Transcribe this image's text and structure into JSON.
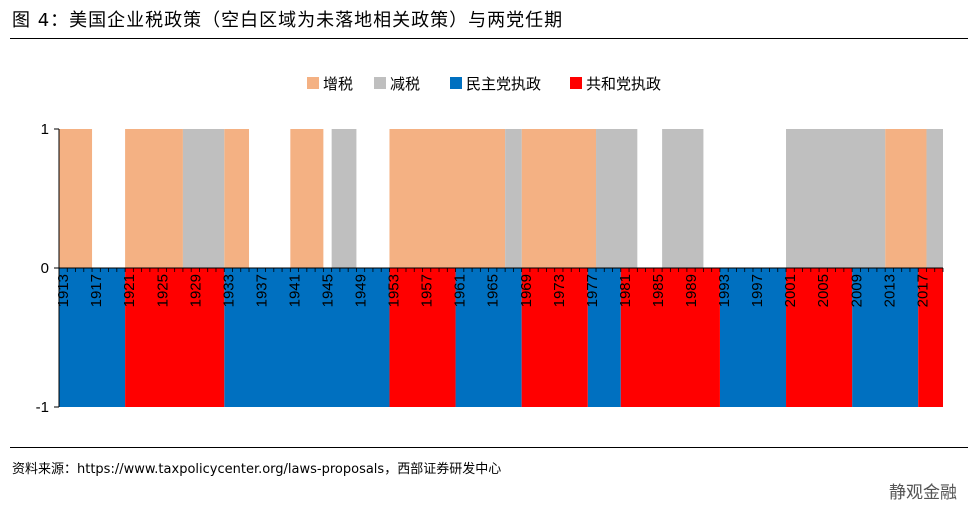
{
  "title": "图 4：美国企业税政策（空白区域为未落地相关政策）与两党任期",
  "source": "资料来源：https://www.taxpolicycenter.org/laws-proposals，西部证券研发中心",
  "watermark": "静观金融",
  "colors": {
    "increase": "#F4B183",
    "cut": "#BFBFBF",
    "democrat": "#0070C0",
    "republican": "#FF0000",
    "axis": "#000000"
  },
  "chart_data": {
    "type": "bar",
    "x_start_year": 1913,
    "x_end_year": 2020,
    "x_tick_labels": [
      "1913",
      "1917",
      "1921",
      "1925",
      "1929",
      "1933",
      "1937",
      "1941",
      "1945",
      "1949",
      "1953",
      "1957",
      "1961",
      "1965",
      "1969",
      "1973",
      "1977",
      "1981",
      "1985",
      "1989",
      "1993",
      "1997",
      "2001",
      "2005",
      "2009",
      "2013",
      "2017"
    ],
    "y_ticks": [
      1,
      0,
      -1
    ],
    "ylim": [
      -1,
      1
    ],
    "legend": {
      "position": "top",
      "items": [
        {
          "label": "增税",
          "key": "increase"
        },
        {
          "label": "减税",
          "key": "cut"
        },
        {
          "label": "民主党执政",
          "key": "democrat"
        },
        {
          "label": "共和党执政",
          "key": "republican"
        }
      ]
    },
    "series": [
      {
        "name": "增税",
        "value": 1,
        "ranges": [
          [
            1913,
            1917
          ],
          [
            1921,
            1928
          ],
          [
            1933,
            1936
          ],
          [
            1941,
            1945
          ],
          [
            1953,
            1967
          ],
          [
            1969,
            1978
          ],
          [
            2013,
            2018
          ]
        ]
      },
      {
        "name": "减税",
        "value": 1,
        "ranges": [
          [
            1928,
            1933
          ],
          [
            1946,
            1949
          ],
          [
            1967,
            1969
          ],
          [
            1978,
            1983
          ],
          [
            1986,
            1991
          ],
          [
            2001,
            2013
          ],
          [
            2018,
            2020
          ]
        ]
      },
      {
        "name": "民主党执政",
        "value": -1,
        "ranges": [
          [
            1913,
            1921
          ],
          [
            1933,
            1953
          ],
          [
            1961,
            1969
          ],
          [
            1977,
            1981
          ],
          [
            1993,
            2001
          ],
          [
            2009,
            2017
          ]
        ]
      },
      {
        "name": "共和党执政",
        "value": -1,
        "ranges": [
          [
            1921,
            1933
          ],
          [
            1953,
            1961
          ],
          [
            1969,
            1977
          ],
          [
            1981,
            1993
          ],
          [
            2001,
            2009
          ],
          [
            2017,
            2020
          ]
        ]
      }
    ]
  }
}
